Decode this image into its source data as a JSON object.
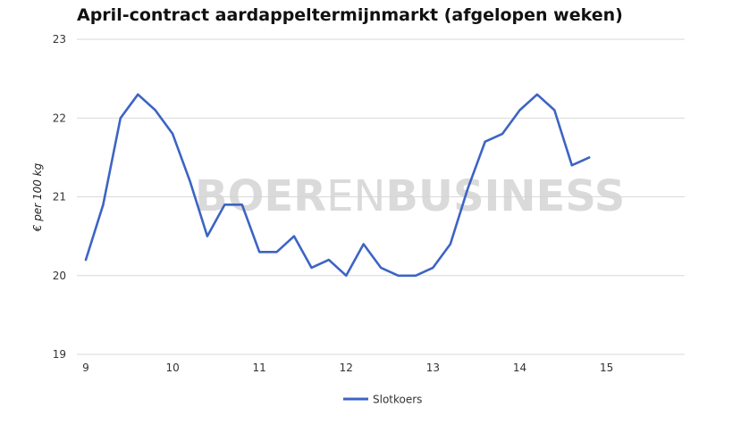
{
  "chart_data": {
    "type": "line",
    "title": "April-contract aardappeltermijnmarkt (afgelopen weken)",
    "ylabel": "€ per 100 kg",
    "xlabel": "",
    "xlim": [
      9,
      15.9
    ],
    "ylim": [
      19,
      23
    ],
    "x_ticks": [
      9,
      10,
      11,
      12,
      13,
      14,
      15
    ],
    "y_ticks": [
      19,
      20,
      21,
      22,
      23
    ],
    "grid": true,
    "legend_position": "bottom",
    "watermark": {
      "bold_part": "BOER",
      "thin_part": "EN",
      "bold_part_2": "BUSINESS"
    },
    "series": [
      {
        "name": "Slotkoers",
        "color": "#3d64c4",
        "x": [
          9.0,
          9.2,
          9.4,
          9.6,
          9.8,
          10.0,
          10.2,
          10.4,
          10.6,
          10.8,
          11.0,
          11.2,
          11.4,
          11.6,
          11.8,
          12.0,
          12.2,
          12.4,
          12.6,
          12.8,
          13.0,
          13.2,
          13.4,
          13.6,
          13.8,
          14.0,
          14.2,
          14.4,
          14.6,
          14.8
        ],
        "values": [
          20.2,
          20.9,
          22.0,
          22.3,
          22.1,
          21.8,
          21.2,
          20.5,
          20.9,
          20.9,
          20.3,
          20.3,
          20.5,
          20.1,
          20.2,
          20.0,
          20.4,
          20.1,
          20.0,
          20.0,
          20.1,
          20.4,
          21.1,
          21.7,
          21.8,
          22.1,
          22.3,
          22.1,
          21.4,
          21.5
        ]
      }
    ]
  }
}
